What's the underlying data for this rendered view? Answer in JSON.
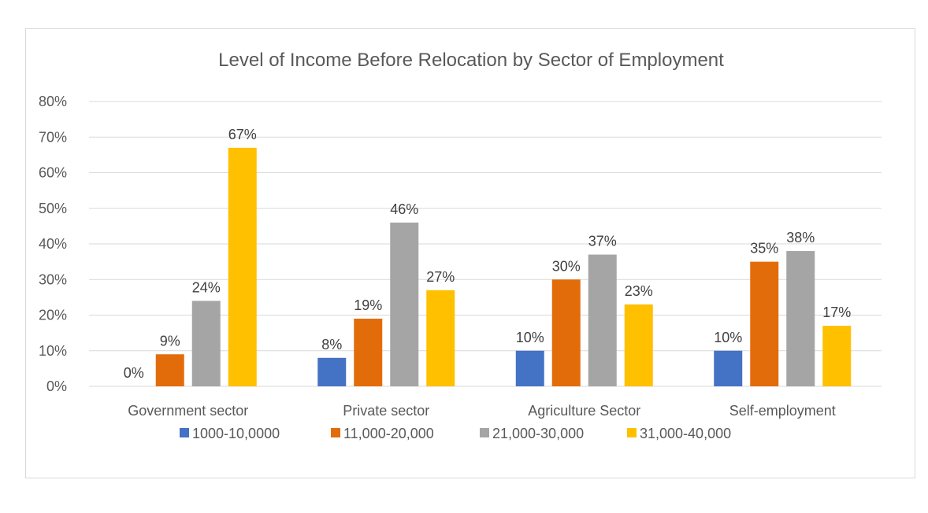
{
  "chart_data": {
    "type": "bar",
    "title": "Level of Income Before Relocation by Sector of Employment",
    "categories": [
      "Government sector",
      "Private sector",
      "Agriculture Sector",
      "Self-employment"
    ],
    "series": [
      {
        "name": "1000-10,0000",
        "color": "#4472C4",
        "values": [
          0,
          8,
          10,
          10
        ],
        "labels": [
          "0%",
          "8%",
          "10%",
          "10%"
        ]
      },
      {
        "name": "11,000-20,000",
        "color": "#E36C0A",
        "values": [
          9,
          19,
          30,
          35
        ],
        "labels": [
          "9%",
          "19%",
          "30%",
          "35%"
        ]
      },
      {
        "name": "21,000-30,000",
        "color": "#A5A5A5",
        "values": [
          24,
          46,
          37,
          38
        ],
        "labels": [
          "24%",
          "46%",
          "37%",
          "38%"
        ]
      },
      {
        "name": "31,000-40,000",
        "color": "#FFC000",
        "values": [
          67,
          27,
          23,
          17
        ],
        "labels": [
          "67%",
          "27%",
          "23%",
          "17%"
        ]
      }
    ],
    "ylim": [
      0,
      80
    ],
    "yticks": [
      "0%",
      "10%",
      "20%",
      "30%",
      "40%",
      "50%",
      "60%",
      "70%",
      "80%"
    ],
    "xlabel": "",
    "ylabel": "",
    "grid": true,
    "legend_position": "bottom"
  }
}
